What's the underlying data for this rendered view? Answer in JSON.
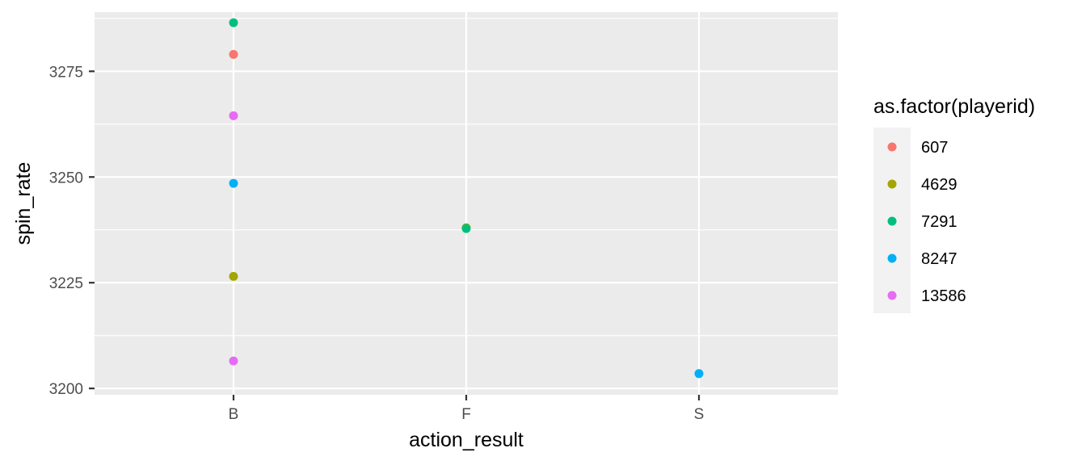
{
  "chart_data": {
    "type": "scatter",
    "xlabel": "action_result",
    "ylabel": "spin_rate",
    "categories": [
      "B",
      "F",
      "S"
    ],
    "ylim": [
      3198.5,
      3289
    ],
    "yticks": [
      3200,
      3225,
      3250,
      3275
    ],
    "grid": true,
    "legend": {
      "title": "as.factor(playerid)",
      "placement": "right",
      "entries": [
        {
          "label": "607",
          "color": "#F8766D"
        },
        {
          "label": "4629",
          "color": "#A3A500"
        },
        {
          "label": "7291",
          "color": "#00BF7D"
        },
        {
          "label": "8247",
          "color": "#00B0F6"
        },
        {
          "label": "13586",
          "color": "#E76BF3"
        }
      ]
    },
    "series": [
      {
        "name": "607",
        "color": "#F8766D",
        "points": [
          {
            "x": "B",
            "y": 3279
          }
        ]
      },
      {
        "name": "4629",
        "color": "#A3A500",
        "points": [
          {
            "x": "B",
            "y": 3226.5
          },
          {
            "x": "F",
            "y": 3238
          }
        ]
      },
      {
        "name": "7291",
        "color": "#00BF7D",
        "points": [
          {
            "x": "B",
            "y": 3286.5
          },
          {
            "x": "F",
            "y": 3237.8
          }
        ]
      },
      {
        "name": "8247",
        "color": "#00B0F6",
        "points": [
          {
            "x": "B",
            "y": 3248.5
          },
          {
            "x": "S",
            "y": 3203.5
          }
        ]
      },
      {
        "name": "13586",
        "color": "#E76BF3",
        "points": [
          {
            "x": "B",
            "y": 3264.5
          },
          {
            "x": "B",
            "y": 3206.5
          }
        ]
      }
    ]
  }
}
